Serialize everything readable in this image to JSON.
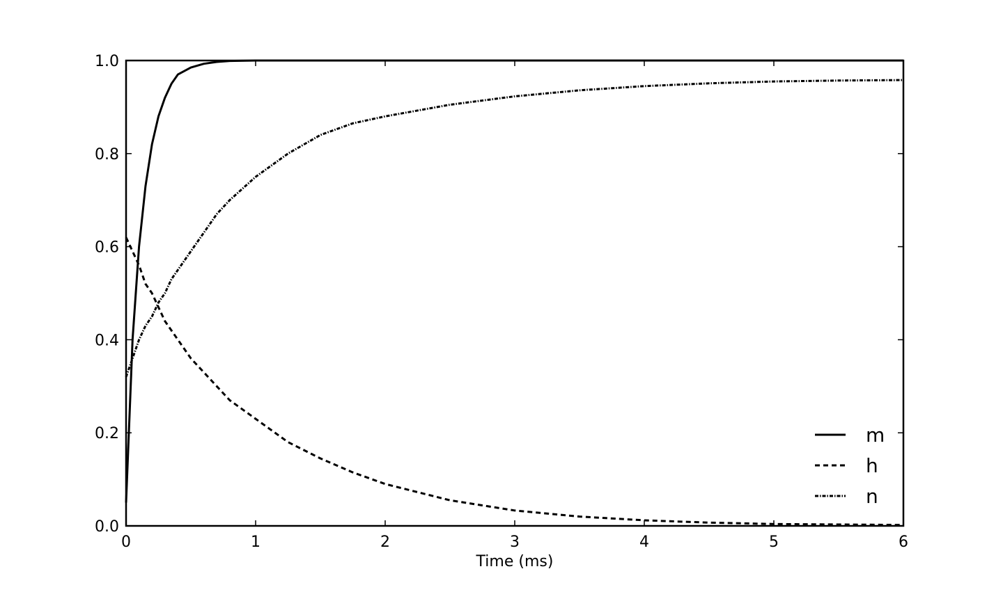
{
  "chart_data": {
    "type": "line",
    "title": "",
    "xlabel": "Time (ms)",
    "ylabel": "",
    "xlim": [
      0,
      6
    ],
    "ylim": [
      0.0,
      1.0
    ],
    "xticks": [
      "0",
      "1",
      "2",
      "3",
      "4",
      "5",
      "6"
    ],
    "yticks": [
      "0.0",
      "0.2",
      "0.4",
      "0.6",
      "0.8",
      "1.0"
    ],
    "grid": false,
    "legend_position": "lower-right",
    "line_color": "#000000",
    "x": [
      0,
      0.05,
      0.1,
      0.15,
      0.2,
      0.25,
      0.3,
      0.35,
      0.4,
      0.5,
      0.6,
      0.7,
      0.8,
      1.0,
      1.25,
      1.5,
      1.75,
      2.0,
      2.5,
      3.0,
      3.5,
      4.0,
      4.5,
      5.0,
      5.5,
      6.0
    ],
    "series": [
      {
        "name": "m",
        "style": "solid",
        "values": [
          0.05,
          0.4,
          0.6,
          0.73,
          0.82,
          0.88,
          0.92,
          0.95,
          0.97,
          0.985,
          0.993,
          0.997,
          0.999,
          1.0,
          1.0,
          1.0,
          1.0,
          1.0,
          1.0,
          1.0,
          1.0,
          1.0,
          1.0,
          1.0,
          1.0,
          1.0
        ]
      },
      {
        "name": "h",
        "style": "dashed",
        "values": [
          0.62,
          0.59,
          0.56,
          0.52,
          0.5,
          0.47,
          0.44,
          0.42,
          0.4,
          0.36,
          0.33,
          0.3,
          0.27,
          0.23,
          0.18,
          0.145,
          0.115,
          0.09,
          0.055,
          0.033,
          0.02,
          0.012,
          0.007,
          0.004,
          0.003,
          0.002
        ]
      },
      {
        "name": "n",
        "style": "dash-dot",
        "values": [
          0.32,
          0.36,
          0.4,
          0.43,
          0.45,
          0.48,
          0.5,
          0.53,
          0.55,
          0.59,
          0.63,
          0.67,
          0.7,
          0.75,
          0.8,
          0.84,
          0.865,
          0.88,
          0.905,
          0.923,
          0.936,
          0.945,
          0.951,
          0.955,
          0.957,
          0.958
        ]
      }
    ]
  }
}
